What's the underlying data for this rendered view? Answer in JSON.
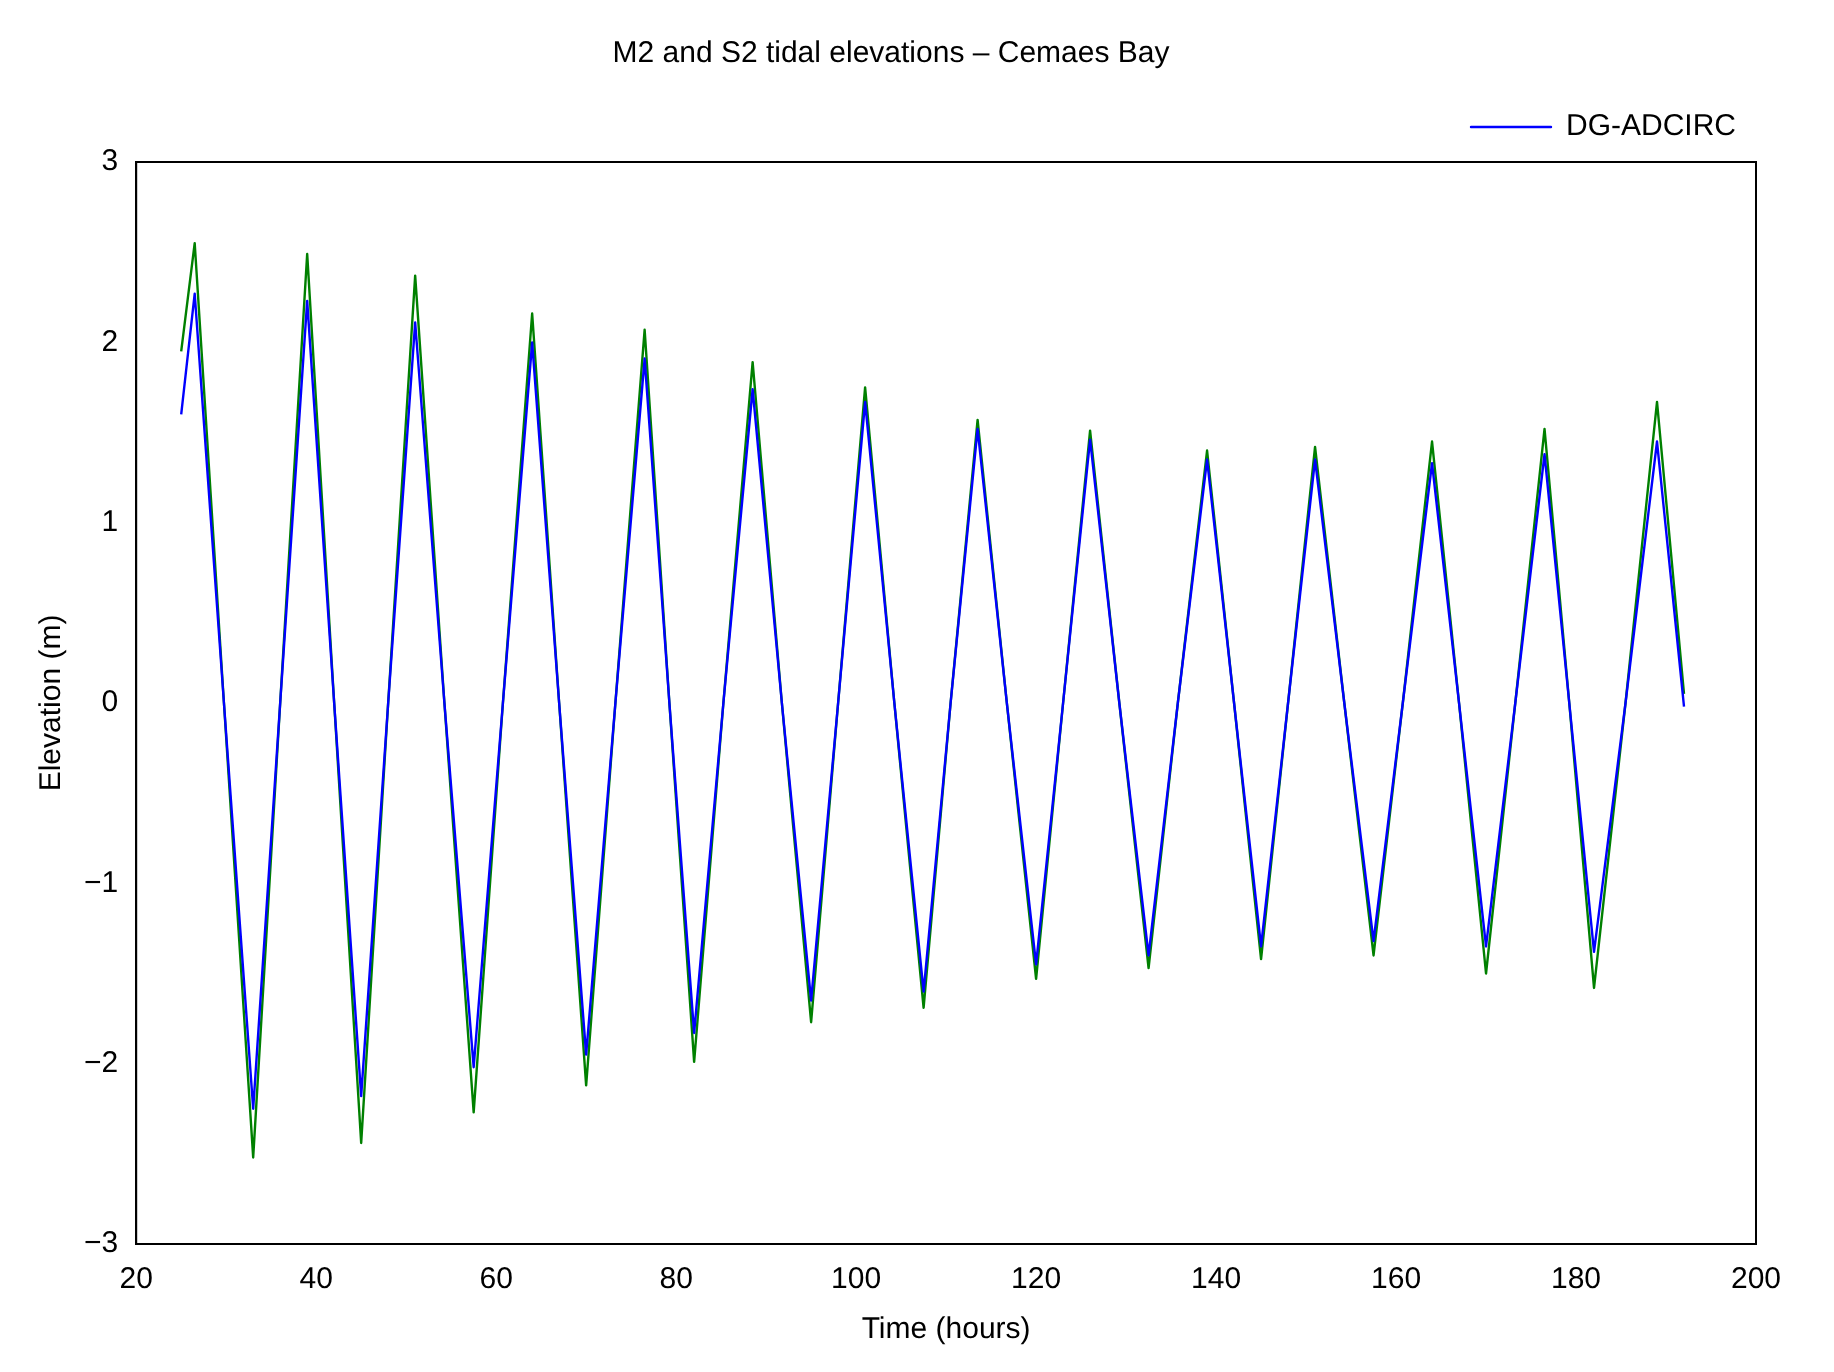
{
  "chart_data": {
    "type": "line",
    "title": "M2 and S2 tidal elevations – Cemaes Bay",
    "xlabel": "Time (hours)",
    "ylabel": "Elevation (m)",
    "x": [
      25,
      26.5,
      29.75,
      33,
      36,
      39,
      42,
      45,
      48,
      51,
      54.25,
      57.5,
      60.75,
      64,
      67,
      70,
      73.25,
      76.5,
      79.25,
      82,
      85.25,
      88.5,
      91.75,
      95,
      98,
      101,
      104.25,
      107.5,
      110.5,
      113.5,
      116.75,
      120,
      123,
      126,
      129.25,
      132.5,
      135.75,
      139,
      142,
      145,
      148,
      151,
      154.25,
      157.5,
      160.75,
      164,
      167,
      170,
      173.25,
      176.5,
      179.25,
      182,
      185.5,
      189,
      192
    ],
    "series": [
      {
        "name": "DG-ADCIRC",
        "color": "#0000ff",
        "values": [
          1.6,
          2.27,
          0,
          -2.25,
          0,
          2.23,
          0,
          -2.18,
          0,
          2.11,
          0,
          -2.02,
          0,
          2.0,
          0,
          -1.95,
          0,
          1.91,
          0,
          -1.83,
          0,
          1.74,
          0,
          -1.65,
          0,
          1.67,
          0,
          -1.6,
          0,
          1.52,
          0,
          -1.45,
          0,
          1.46,
          0,
          -1.4,
          0,
          1.35,
          0,
          -1.35,
          0,
          1.35,
          0,
          -1.32,
          0,
          1.33,
          0,
          -1.35,
          0,
          1.38,
          0,
          -1.38,
          0,
          1.45,
          -0.02
        ]
      },
      {
        "color": "#008000",
        "values": [
          1.95,
          2.55,
          0,
          -2.52,
          0,
          2.49,
          0,
          -2.44,
          0,
          2.37,
          0,
          -2.27,
          0,
          2.16,
          0,
          -2.12,
          0,
          2.07,
          0,
          -1.99,
          0,
          1.89,
          0,
          -1.77,
          0,
          1.75,
          0,
          -1.69,
          0,
          1.57,
          0,
          -1.53,
          0,
          1.51,
          0,
          -1.47,
          0,
          1.4,
          0,
          -1.42,
          0,
          1.42,
          0,
          -1.4,
          0,
          1.45,
          0,
          -1.5,
          0,
          1.52,
          0,
          -1.58,
          0,
          1.67,
          0.05
        ]
      }
    ],
    "xlim": [
      20,
      200
    ],
    "xticks": [
      20,
      40,
      60,
      80,
      100,
      120,
      140,
      160,
      180,
      200
    ],
    "ylim": [
      -3,
      3
    ],
    "yticks": [
      -3,
      -2,
      -1,
      0,
      1,
      2,
      3
    ],
    "grid": false,
    "legend": "top right",
    "marker": "none",
    "line_style": "solid"
  }
}
